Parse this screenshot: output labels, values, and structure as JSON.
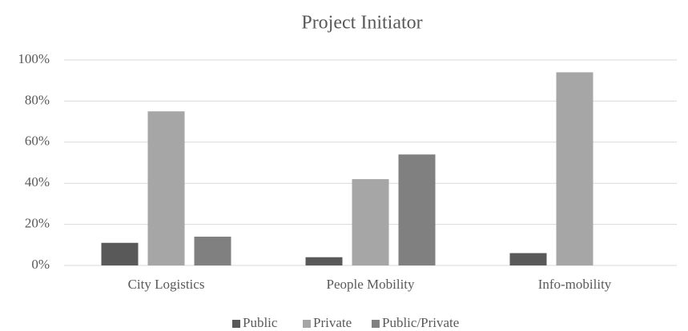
{
  "chart_data": {
    "type": "bar",
    "title": "Project Initiator",
    "categories": [
      "City Logistics",
      "People Mobility",
      "Info-mobility"
    ],
    "series": [
      {
        "name": "Public",
        "color": "#595959",
        "values": [
          11,
          4,
          6
        ]
      },
      {
        "name": "Private",
        "color": "#a6a6a6",
        "values": [
          75,
          42,
          94
        ]
      },
      {
        "name": "Public/Private",
        "color": "#808080",
        "values": [
          14,
          54,
          0
        ]
      }
    ],
    "ylim": [
      0,
      100
    ],
    "yticks": [
      {
        "value": 0,
        "label": "0%"
      },
      {
        "value": 20,
        "label": "20%"
      },
      {
        "value": 40,
        "label": "40%"
      },
      {
        "value": 60,
        "label": "60%"
      },
      {
        "value": 80,
        "label": "80%"
      },
      {
        "value": 100,
        "label": "100%"
      }
    ],
    "grid": true,
    "legend": "bottom"
  }
}
